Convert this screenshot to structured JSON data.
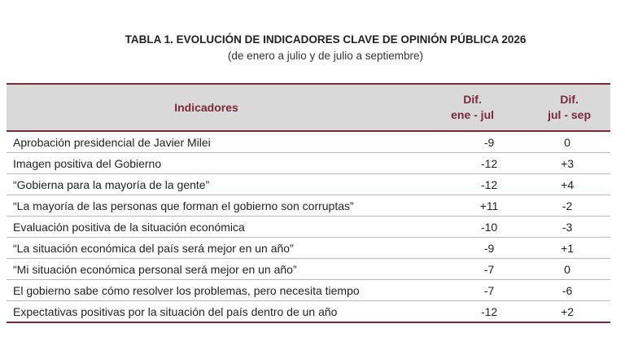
{
  "header": {
    "title": "TABLA 1. EVOLUCIÓN DE INDICADORES CLAVE DE OPINIÓN PÚBLICA 2026",
    "subtitle": "(de enero a julio y de julio a septiembre)"
  },
  "table": {
    "columns": [
      {
        "lines": [
          "Indicadores"
        ]
      },
      {
        "lines": [
          "Dif.",
          "ene - jul"
        ]
      },
      {
        "lines": [
          "Dif.",
          "jul - sep"
        ]
      }
    ],
    "rows": [
      [
        "Aprobación presidencial de Javier Milei",
        "-9",
        "0"
      ],
      [
        "Imagen positiva del Gobierno",
        "-12",
        "+3"
      ],
      [
        "“Gobierna para la mayoría de la gente”",
        "-12",
        "+4"
      ],
      [
        "“La mayoría de las personas que forman el gobierno son corruptas”",
        "+11",
        "-2"
      ],
      [
        "Evaluación positiva de la situación económica",
        "-10",
        "-3"
      ],
      [
        "“La situación económica del país será mejor en un año”",
        "-9",
        "+1"
      ],
      [
        "“Mi situación económica personal será mejor en un año”",
        "-7",
        "0"
      ],
      [
        "El gobierno sabe cómo resolver los problemas, pero necesita tiempo",
        "-7",
        "-6"
      ],
      [
        "Expectativas positivas por la situación del país dentro de un año",
        "-12",
        "+2"
      ]
    ]
  }
}
